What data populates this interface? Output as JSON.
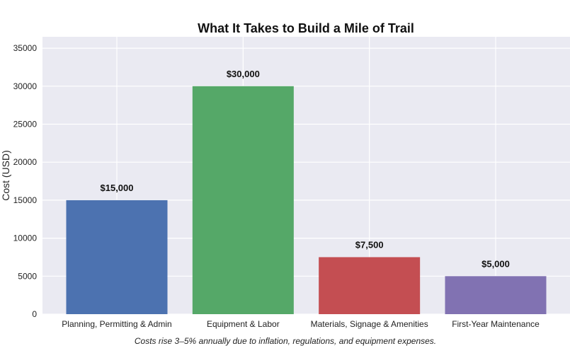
{
  "chart_data": {
    "type": "bar",
    "title": "What It Takes to Build a Mile of Trail",
    "xlabel": "",
    "ylabel": "Cost (USD)",
    "categories": [
      "Planning, Permitting & Admin",
      "Equipment & Labor",
      "Materials, Signage & Amenities",
      "First-Year Maintenance"
    ],
    "values": [
      15000,
      30000,
      7500,
      5000
    ],
    "data_labels": [
      "$15,000",
      "$30,000",
      "$7,500",
      "$5,000"
    ],
    "colors": [
      "#4c72b0",
      "#55a868",
      "#c44e52",
      "#8172b2"
    ],
    "ylim": [
      0,
      36500
    ],
    "yticks": [
      0,
      5000,
      10000,
      15000,
      20000,
      25000,
      30000,
      35000
    ],
    "grid": true,
    "legend": "none",
    "background": "#eaeaf2",
    "caption": "Costs rise 3–5% annually due to inflation, regulations, and equipment expenses."
  }
}
